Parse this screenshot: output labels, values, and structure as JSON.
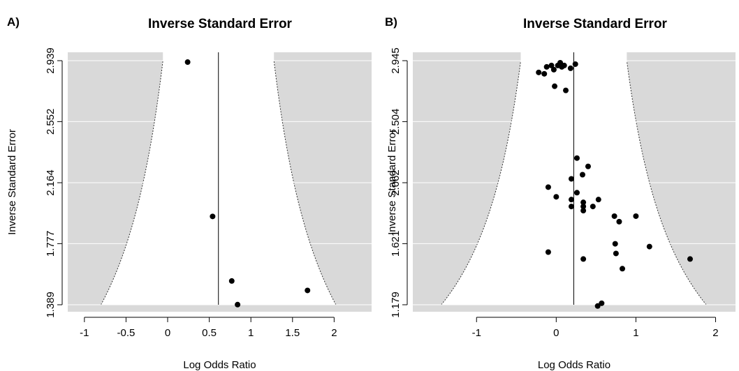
{
  "chart_data": [
    {
      "type": "scatter",
      "panel_label": "A)",
      "title": "Inverse Standard Error",
      "xlabel": "Log Odds Ratio",
      "ylabel": "Inverse Standard Error",
      "xlim": [
        -1.2,
        2.45
      ],
      "ylim": [
        1.389,
        2.939
      ],
      "x_ticks": [
        -1,
        -0.5,
        0,
        0.5,
        1,
        1.5,
        2
      ],
      "x_tick_labels": [
        "-1",
        "-0.5",
        "0",
        "0.5",
        "1",
        "1.5",
        "2"
      ],
      "y_ticks": [
        1.389,
        1.777,
        2.164,
        2.552,
        2.939
      ],
      "y_tick_labels": [
        "1.389",
        "1.777",
        "2.164",
        "2.552",
        "2.939"
      ],
      "reference_line_x": 0.61,
      "funnel": {
        "center": 0.61,
        "z": 1.96
      },
      "grid": "horizontal",
      "points": [
        {
          "x": 0.24,
          "y": 2.93
        },
        {
          "x": 0.54,
          "y": 1.95
        },
        {
          "x": 0.77,
          "y": 1.54
        },
        {
          "x": 0.84,
          "y": 1.39
        },
        {
          "x": 1.68,
          "y": 1.48
        }
      ]
    },
    {
      "type": "scatter",
      "panel_label": "B)",
      "title": "Inverse Standard Error",
      "xlabel": "Log Odds Ratio",
      "ylabel": "Inverse Standard Error",
      "xlim": [
        -1.8,
        2.25
      ],
      "ylim": [
        1.179,
        2.945
      ],
      "x_ticks": [
        -1,
        0,
        1,
        2
      ],
      "x_tick_labels": [
        "-1",
        "0",
        "1",
        "2"
      ],
      "y_ticks": [
        1.179,
        1.621,
        2.062,
        2.504,
        2.945
      ],
      "y_tick_labels": [
        "1.179",
        "1.621",
        "2.062",
        "2.504",
        "2.945"
      ],
      "reference_line_x": 0.22,
      "funnel": {
        "center": 0.22,
        "z": 1.96
      },
      "grid": "horizontal",
      "points": [
        {
          "x": -0.22,
          "y": 2.86
        },
        {
          "x": -0.15,
          "y": 2.85
        },
        {
          "x": -0.12,
          "y": 2.9
        },
        {
          "x": -0.06,
          "y": 2.91
        },
        {
          "x": -0.03,
          "y": 2.88
        },
        {
          "x": 0.02,
          "y": 2.91
        },
        {
          "x": 0.05,
          "y": 2.93
        },
        {
          "x": 0.07,
          "y": 2.9
        },
        {
          "x": 0.1,
          "y": 2.91
        },
        {
          "x": 0.18,
          "y": 2.89
        },
        {
          "x": 0.24,
          "y": 2.92
        },
        {
          "x": -0.02,
          "y": 2.76
        },
        {
          "x": 0.12,
          "y": 2.73
        },
        {
          "x": 0.26,
          "y": 2.24
        },
        {
          "x": 0.4,
          "y": 2.18
        },
        {
          "x": 0.33,
          "y": 2.12
        },
        {
          "x": 0.19,
          "y": 2.09
        },
        {
          "x": -0.1,
          "y": 2.03
        },
        {
          "x": 0.26,
          "y": 1.99
        },
        {
          "x": 0.0,
          "y": 1.96
        },
        {
          "x": 0.19,
          "y": 1.94
        },
        {
          "x": 0.34,
          "y": 1.92
        },
        {
          "x": 0.53,
          "y": 1.94
        },
        {
          "x": 0.19,
          "y": 1.89
        },
        {
          "x": 0.34,
          "y": 1.89
        },
        {
          "x": 0.46,
          "y": 1.89
        },
        {
          "x": 0.34,
          "y": 1.86
        },
        {
          "x": 0.73,
          "y": 1.82
        },
        {
          "x": 1.0,
          "y": 1.82
        },
        {
          "x": 0.79,
          "y": 1.78
        },
        {
          "x": 0.74,
          "y": 1.62
        },
        {
          "x": 1.17,
          "y": 1.6
        },
        {
          "x": -0.1,
          "y": 1.56
        },
        {
          "x": 0.75,
          "y": 1.55
        },
        {
          "x": 0.34,
          "y": 1.51
        },
        {
          "x": 1.68,
          "y": 1.51
        },
        {
          "x": 0.83,
          "y": 1.44
        },
        {
          "x": 0.57,
          "y": 1.19
        },
        {
          "x": 0.52,
          "y": 1.17
        }
      ]
    }
  ]
}
